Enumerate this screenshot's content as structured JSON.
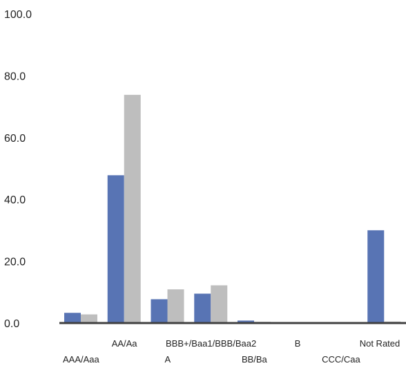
{
  "chart_data": {
    "type": "bar",
    "categories": [
      "AAA/Aaa",
      "AA/Aa",
      "A",
      "BBB+/Baa1/BBB/Baa2",
      "BB/Ba",
      "B",
      "CCC/Caa",
      "Not Rated"
    ],
    "series": [
      {
        "values": [
          3.3,
          47.8,
          7.7,
          9.5,
          0.8,
          0.2,
          0.2,
          30.0
        ],
        "color": "#5874b4"
      },
      {
        "values": [
          2.8,
          73.8,
          10.9,
          12.2,
          0.4,
          0.3,
          0.3,
          0.5
        ],
        "color": "#bebebe"
      }
    ],
    "y_ticks": [
      "0.0",
      "20.0",
      "40.0",
      "60.0",
      "80.0",
      "100.0"
    ],
    "ylim": [
      0,
      100
    ],
    "grid": false,
    "legend": "none",
    "axis_color": "#404040"
  }
}
